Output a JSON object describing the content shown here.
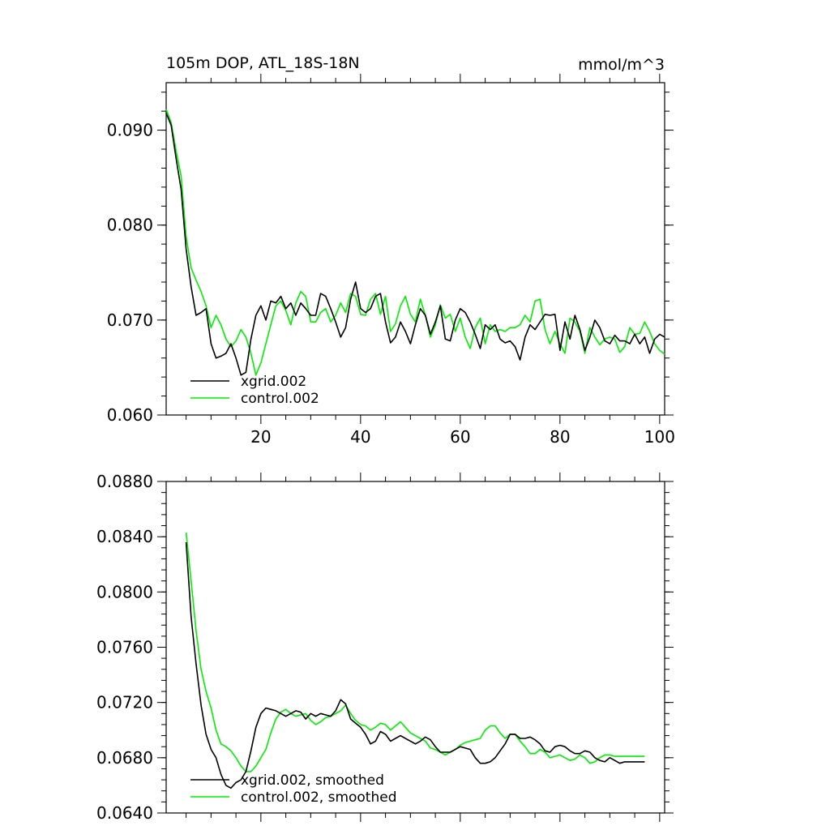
{
  "chart_data": [
    {
      "type": "line",
      "title": "105m DOP, ATL_18S-18N",
      "units": "mmol/m^3",
      "xlim": [
        1,
        101
      ],
      "ylim": [
        0.06,
        0.095
      ],
      "xticks": [
        20,
        40,
        60,
        80,
        100
      ],
      "xtick_labels": [
        "20",
        "40",
        "60",
        "80",
        "100"
      ],
      "yticks": [
        0.06,
        0.07,
        0.08,
        0.09
      ],
      "ytick_labels": [
        "0.060",
        "0.070",
        "0.080",
        "0.090"
      ],
      "legend_position": "bottom-left",
      "series": [
        {
          "name": "xgrid.002",
          "color": "#000000",
          "x": [
            1,
            2,
            3,
            4,
            5,
            6,
            7,
            8,
            9,
            10,
            11,
            12,
            13,
            14,
            15,
            16,
            17,
            18,
            19,
            20,
            21,
            22,
            23,
            24,
            25,
            26,
            27,
            28,
            29,
            30,
            31,
            32,
            33,
            34,
            35,
            36,
            37,
            38,
            39,
            40,
            41,
            42,
            43,
            44,
            45,
            46,
            47,
            48,
            49,
            50,
            51,
            52,
            53,
            54,
            55,
            56,
            57,
            58,
            59,
            60,
            61,
            62,
            63,
            64,
            65,
            66,
            67,
            68,
            69,
            70,
            71,
            72,
            73,
            74,
            75,
            76,
            77,
            78,
            79,
            80,
            81,
            82,
            83,
            84,
            85,
            86,
            87,
            88,
            89,
            90,
            91,
            92,
            93,
            94,
            95,
            96,
            97,
            98,
            99,
            100,
            101
          ],
          "values": [
            0.0918,
            0.0905,
            0.087,
            0.0838,
            0.0775,
            0.0735,
            0.0705,
            0.0708,
            0.0712,
            0.0675,
            0.066,
            0.0662,
            0.0665,
            0.0675,
            0.066,
            0.0642,
            0.0645,
            0.068,
            0.0705,
            0.0715,
            0.07,
            0.072,
            0.0718,
            0.0725,
            0.0712,
            0.0718,
            0.0705,
            0.0718,
            0.0712,
            0.0705,
            0.0705,
            0.0728,
            0.0725,
            0.0712,
            0.0698,
            0.0682,
            0.0692,
            0.0722,
            0.074,
            0.0712,
            0.0708,
            0.0712,
            0.0725,
            0.0728,
            0.0698,
            0.0676,
            0.0682,
            0.0698,
            0.0688,
            0.0675,
            0.0695,
            0.0712,
            0.0705,
            0.0685,
            0.0698,
            0.0715,
            0.068,
            0.0678,
            0.07,
            0.0712,
            0.0708,
            0.0698,
            0.0685,
            0.067,
            0.0695,
            0.069,
            0.0695,
            0.068,
            0.0676,
            0.0678,
            0.0672,
            0.0658,
            0.0682,
            0.0695,
            0.069,
            0.0698,
            0.0706,
            0.0705,
            0.0706,
            0.0668,
            0.0698,
            0.068,
            0.0705,
            0.069,
            0.0668,
            0.0682,
            0.07,
            0.0692,
            0.0678,
            0.0675,
            0.0684,
            0.0678,
            0.0678,
            0.0675,
            0.0685,
            0.0675,
            0.0682,
            0.0665,
            0.068,
            0.0685,
            0.0682
          ]
        },
        {
          "name": "control.002",
          "color": "#00ee00",
          "x": [
            1,
            2,
            3,
            4,
            5,
            6,
            7,
            8,
            9,
            10,
            11,
            12,
            13,
            14,
            15,
            16,
            17,
            18,
            19,
            20,
            21,
            22,
            23,
            24,
            25,
            26,
            27,
            28,
            29,
            30,
            31,
            32,
            33,
            34,
            35,
            36,
            37,
            38,
            39,
            40,
            41,
            42,
            43,
            44,
            45,
            46,
            47,
            48,
            49,
            50,
            51,
            52,
            53,
            54,
            55,
            56,
            57,
            58,
            59,
            60,
            61,
            62,
            63,
            64,
            65,
            66,
            67,
            68,
            69,
            70,
            71,
            72,
            73,
            74,
            75,
            76,
            77,
            78,
            79,
            80,
            81,
            82,
            83,
            84,
            85,
            86,
            87,
            88,
            89,
            90,
            91,
            92,
            93,
            94,
            95,
            96,
            97,
            98,
            99,
            100,
            101
          ],
          "values": [
            0.0922,
            0.0908,
            0.0878,
            0.0852,
            0.0788,
            0.0755,
            0.0742,
            0.073,
            0.0715,
            0.0692,
            0.0705,
            0.0695,
            0.068,
            0.0672,
            0.0678,
            0.069,
            0.0682,
            0.0665,
            0.0642,
            0.0655,
            0.0675,
            0.0695,
            0.0715,
            0.072,
            0.071,
            0.0695,
            0.0718,
            0.073,
            0.0725,
            0.0698,
            0.0698,
            0.0708,
            0.0712,
            0.0698,
            0.0705,
            0.0718,
            0.0708,
            0.0728,
            0.0725,
            0.0706,
            0.0705,
            0.0722,
            0.0728,
            0.0706,
            0.0725,
            0.0688,
            0.0696,
            0.0715,
            0.0725,
            0.0706,
            0.0698,
            0.0722,
            0.0705,
            0.0682,
            0.0695,
            0.0716,
            0.0702,
            0.0706,
            0.0688,
            0.0702,
            0.0682,
            0.067,
            0.0692,
            0.0702,
            0.0675,
            0.0695,
            0.0688,
            0.069,
            0.0688,
            0.0692,
            0.0692,
            0.0695,
            0.0705,
            0.0698,
            0.072,
            0.0722,
            0.069,
            0.0675,
            0.0688,
            0.0675,
            0.0665,
            0.0702,
            0.0698,
            0.0688,
            0.0665,
            0.0692,
            0.0682,
            0.0674,
            0.068,
            0.0682,
            0.068,
            0.0666,
            0.0672,
            0.0692,
            0.0685,
            0.0686,
            0.0698,
            0.0688,
            0.0675,
            0.0668,
            0.0664
          ]
        }
      ]
    },
    {
      "type": "line",
      "title": "",
      "xlim": [
        1,
        101
      ],
      "ylim": [
        0.064,
        0.088
      ],
      "xticks": [
        20,
        40,
        60,
        80,
        100
      ],
      "xtick_labels": [
        "",
        "",
        "",
        "",
        ""
      ],
      "yticks": [
        0.064,
        0.068,
        0.072,
        0.076,
        0.08,
        0.084,
        0.088
      ],
      "ytick_labels": [
        "0.0640",
        "0.0680",
        "0.0720",
        "0.0760",
        "0.0800",
        "0.0840",
        "0.0880"
      ],
      "legend_position": "bottom-left",
      "series": [
        {
          "name": "xgrid.002, smoothed",
          "color": "#000000",
          "x": [
            5,
            6,
            7,
            8,
            9,
            10,
            11,
            12,
            13,
            14,
            15,
            16,
            17,
            18,
            19,
            20,
            21,
            22,
            23,
            24,
            25,
            26,
            27,
            28,
            29,
            30,
            31,
            32,
            33,
            34,
            35,
            36,
            37,
            38,
            39,
            40,
            41,
            42,
            43,
            44,
            45,
            46,
            47,
            48,
            49,
            50,
            51,
            52,
            53,
            54,
            55,
            56,
            57,
            58,
            59,
            60,
            61,
            62,
            63,
            64,
            65,
            66,
            67,
            68,
            69,
            70,
            71,
            72,
            73,
            74,
            75,
            76,
            77,
            78,
            79,
            80,
            81,
            82,
            83,
            84,
            85,
            86,
            87,
            88,
            89,
            90,
            91,
            92,
            93,
            94,
            95,
            96,
            97
          ],
          "values": [
            0.0836,
            0.0782,
            0.0748,
            0.0718,
            0.0697,
            0.0686,
            0.068,
            0.0668,
            0.066,
            0.0658,
            0.0662,
            0.0664,
            0.067,
            0.0685,
            0.0702,
            0.0712,
            0.0716,
            0.0715,
            0.0714,
            0.0712,
            0.071,
            0.0712,
            0.0714,
            0.0713,
            0.0708,
            0.0712,
            0.071,
            0.0712,
            0.0711,
            0.071,
            0.0714,
            0.0722,
            0.0719,
            0.0708,
            0.0705,
            0.0702,
            0.0697,
            0.069,
            0.0692,
            0.0699,
            0.0697,
            0.0692,
            0.0694,
            0.0696,
            0.0694,
            0.0692,
            0.069,
            0.0692,
            0.0695,
            0.0693,
            0.0688,
            0.0684,
            0.0684,
            0.0684,
            0.0686,
            0.0688,
            0.0687,
            0.0686,
            0.068,
            0.0676,
            0.0676,
            0.0677,
            0.068,
            0.0685,
            0.069,
            0.0697,
            0.0697,
            0.0694,
            0.0694,
            0.0695,
            0.0693,
            0.069,
            0.0685,
            0.0684,
            0.0688,
            0.0689,
            0.0688,
            0.0685,
            0.0683,
            0.0683,
            0.0685,
            0.0684,
            0.068,
            0.0678,
            0.0677,
            0.068,
            0.0678,
            0.0676,
            0.0677,
            0.0677,
            0.0677,
            0.0677,
            0.0677
          ]
        },
        {
          "name": "control.002, smoothed",
          "color": "#00ee00",
          "x": [
            5,
            6,
            7,
            8,
            9,
            10,
            11,
            12,
            13,
            14,
            15,
            16,
            17,
            18,
            19,
            20,
            21,
            22,
            23,
            24,
            25,
            26,
            27,
            28,
            29,
            30,
            31,
            32,
            33,
            34,
            35,
            36,
            37,
            38,
            39,
            40,
            41,
            42,
            43,
            44,
            45,
            46,
            47,
            48,
            49,
            50,
            51,
            52,
            53,
            54,
            55,
            56,
            57,
            58,
            59,
            60,
            61,
            62,
            63,
            64,
            65,
            66,
            67,
            68,
            69,
            70,
            71,
            72,
            73,
            74,
            75,
            76,
            77,
            78,
            79,
            80,
            81,
            82,
            83,
            84,
            85,
            86,
            87,
            88,
            89,
            90,
            91,
            92,
            93,
            94,
            95,
            96,
            97
          ],
          "values": [
            0.0843,
            0.0808,
            0.0772,
            0.0744,
            0.0728,
            0.0716,
            0.07,
            0.069,
            0.0688,
            0.0685,
            0.068,
            0.0674,
            0.067,
            0.067,
            0.0674,
            0.068,
            0.0686,
            0.0698,
            0.0708,
            0.0713,
            0.0715,
            0.0712,
            0.071,
            0.0711,
            0.0712,
            0.0707,
            0.0704,
            0.0706,
            0.0709,
            0.071,
            0.0712,
            0.0714,
            0.0718,
            0.0712,
            0.0707,
            0.0704,
            0.0703,
            0.07,
            0.0702,
            0.0705,
            0.0704,
            0.07,
            0.0703,
            0.0706,
            0.0702,
            0.0698,
            0.0696,
            0.0694,
            0.0692,
            0.0687,
            0.0686,
            0.0684,
            0.0682,
            0.0684,
            0.0686,
            0.0689,
            0.0691,
            0.0692,
            0.0693,
            0.0694,
            0.07,
            0.0703,
            0.0703,
            0.0698,
            0.0694,
            0.0697,
            0.0697,
            0.0692,
            0.0688,
            0.0683,
            0.0683,
            0.0686,
            0.0684,
            0.068,
            0.0681,
            0.0682,
            0.068,
            0.0678,
            0.0679,
            0.0682,
            0.068,
            0.0676,
            0.0677,
            0.068,
            0.0682,
            0.0682,
            0.0681,
            0.0681,
            0.0681,
            0.0681,
            0.0681,
            0.0681,
            0.0681
          ]
        }
      ]
    }
  ]
}
